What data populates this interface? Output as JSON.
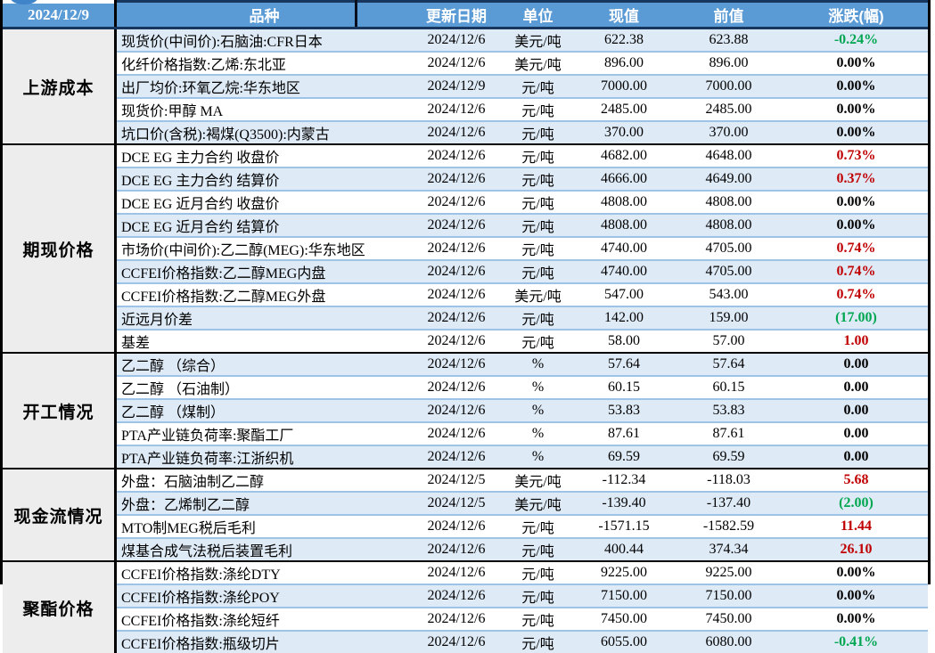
{
  "meta": {
    "report_date": "2024/12/9"
  },
  "header": {
    "columns": [
      "品种",
      "更新日期",
      "单位",
      "现值",
      "前值",
      "涨跌(幅)"
    ]
  },
  "colors": {
    "header_blue": "#5B9BD5",
    "header_underline_navy": "#17375E",
    "stripe_blue": "#DEEAF6",
    "row_divider_blue": "#9DC3E6",
    "category_gray": "#EDEDED",
    "up_red": "#C00000",
    "down_green": "#00A650"
  },
  "sections": [
    {
      "label": "上游成本",
      "rows": [
        {
          "name": "现货价(中间价):石脑油:CFR日本",
          "date": "2024/12/6",
          "unit": "美元/吨",
          "current": "622.38",
          "previous": "623.88",
          "change": "-0.24%",
          "trend": "down"
        },
        {
          "name": "化纤价格指数:乙烯:东北亚",
          "date": "2024/12/6",
          "unit": "美元/吨",
          "current": "896.00",
          "previous": "896.00",
          "change": "0.00%",
          "trend": "flat"
        },
        {
          "name": "出厂均价:环氧乙烷:华东地区",
          "date": "2024/12/9",
          "unit": "元/吨",
          "current": "7000.00",
          "previous": "7000.00",
          "change": "0.00%",
          "trend": "flat"
        },
        {
          "name": "现货价:甲醇 MA",
          "date": "2024/12/6",
          "unit": "元/吨",
          "current": "2485.00",
          "previous": "2485.00",
          "change": "0.00%",
          "trend": "flat"
        },
        {
          "name": "坑口价(含税):褐煤(Q3500):内蒙古",
          "date": "2024/12/6",
          "unit": "元/吨",
          "current": "370.00",
          "previous": "370.00",
          "change": "0.00%",
          "trend": "flat"
        }
      ]
    },
    {
      "label": "期现价格",
      "rows": [
        {
          "name": "DCE EG 主力合约 收盘价",
          "date": "2024/12/6",
          "unit": "元/吨",
          "current": "4682.00",
          "previous": "4648.00",
          "change": "0.73%",
          "trend": "up"
        },
        {
          "name": "DCE EG 主力合约 结算价",
          "date": "2024/12/6",
          "unit": "元/吨",
          "current": "4666.00",
          "previous": "4649.00",
          "change": "0.37%",
          "trend": "up"
        },
        {
          "name": "DCE EG 近月合约 收盘价",
          "date": "2024/12/6",
          "unit": "元/吨",
          "current": "4808.00",
          "previous": "4808.00",
          "change": "0.00%",
          "trend": "flat"
        },
        {
          "name": "DCE EG 近月合约 结算价",
          "date": "2024/12/6",
          "unit": "元/吨",
          "current": "4808.00",
          "previous": "4808.00",
          "change": "0.00%",
          "trend": "flat"
        },
        {
          "name": "市场价(中间价):乙二醇(MEG):华东地区",
          "date": "2024/12/6",
          "unit": "元/吨",
          "current": "4740.00",
          "previous": "4705.00",
          "change": "0.74%",
          "trend": "up"
        },
        {
          "name": "CCFEI价格指数:乙二醇MEG内盘",
          "date": "2024/12/6",
          "unit": "元/吨",
          "current": "4740.00",
          "previous": "4705.00",
          "change": "0.74%",
          "trend": "up"
        },
        {
          "name": "CCFEI价格指数:乙二醇MEG外盘",
          "date": "2024/12/6",
          "unit": "美元/吨",
          "current": "547.00",
          "previous": "543.00",
          "change": "0.74%",
          "trend": "up"
        },
        {
          "name": "近远月价差",
          "date": "2024/12/6",
          "unit": "元/吨",
          "current": "142.00",
          "previous": "159.00",
          "change": "(17.00)",
          "trend": "down"
        },
        {
          "name": "基差",
          "date": "2024/12/6",
          "unit": "元/吨",
          "current": "58.00",
          "previous": "57.00",
          "change": "1.00",
          "trend": "up"
        }
      ]
    },
    {
      "label": "开工情况",
      "rows": [
        {
          "name": "乙二醇 （综合）",
          "date": "2024/12/6",
          "unit": "%",
          "current": "57.64",
          "previous": "57.64",
          "change": "0.00",
          "trend": "flat"
        },
        {
          "name": "乙二醇 （石油制）",
          "date": "2024/12/6",
          "unit": "%",
          "current": "60.15",
          "previous": "60.15",
          "change": "0.00",
          "trend": "flat"
        },
        {
          "name": "乙二醇 （煤制）",
          "date": "2024/12/6",
          "unit": "%",
          "current": "53.83",
          "previous": "53.83",
          "change": "0.00",
          "trend": "flat"
        },
        {
          "name": "PTA产业链负荷率:聚酯工厂",
          "date": "2024/12/6",
          "unit": "%",
          "current": "87.61",
          "previous": "87.61",
          "change": "0.00",
          "trend": "flat"
        },
        {
          "name": "PTA产业链负荷率:江浙织机",
          "date": "2024/12/6",
          "unit": "%",
          "current": "69.59",
          "previous": "69.59",
          "change": "0.00",
          "trend": "flat"
        }
      ]
    },
    {
      "label": "现金流情况",
      "rows": [
        {
          "name": "外盘：石脑油制乙二醇",
          "date": "2024/12/5",
          "unit": "美元/吨",
          "current": "-112.34",
          "previous": "-118.03",
          "change": "5.68",
          "trend": "up"
        },
        {
          "name": "外盘：乙烯制乙二醇",
          "date": "2024/12/5",
          "unit": "美元/吨",
          "current": "-139.40",
          "previous": "-137.40",
          "change": "(2.00)",
          "trend": "down"
        },
        {
          "name": "MTO制MEG税后毛利",
          "date": "2024/12/6",
          "unit": "元/吨",
          "current": "-1571.15",
          "previous": "-1582.59",
          "change": "11.44",
          "trend": "up"
        },
        {
          "name": "煤基合成气法税后装置毛利",
          "date": "2024/12/6",
          "unit": "元/吨",
          "current": "400.44",
          "previous": "374.34",
          "change": "26.10",
          "trend": "up"
        }
      ]
    },
    {
      "label": "聚酯价格",
      "rows": [
        {
          "name": "CCFEI价格指数:涤纶DTY",
          "date": "2024/12/6",
          "unit": "元/吨",
          "current": "9225.00",
          "previous": "9225.00",
          "change": "0.00%",
          "trend": "flat"
        },
        {
          "name": "CCFEI价格指数:涤纶POY",
          "date": "2024/12/6",
          "unit": "元/吨",
          "current": "7150.00",
          "previous": "7150.00",
          "change": "0.00%",
          "trend": "flat"
        },
        {
          "name": "CCFEI价格指数:涤纶短纤",
          "date": "2024/12/6",
          "unit": "元/吨",
          "current": "7450.00",
          "previous": "7450.00",
          "change": "0.00%",
          "trend": "flat"
        },
        {
          "name": "CCFEI价格指数:瓶级切片",
          "date": "2024/12/6",
          "unit": "元/吨",
          "current": "6055.00",
          "previous": "6080.00",
          "change": "-0.41%",
          "trend": "down"
        }
      ]
    }
  ]
}
